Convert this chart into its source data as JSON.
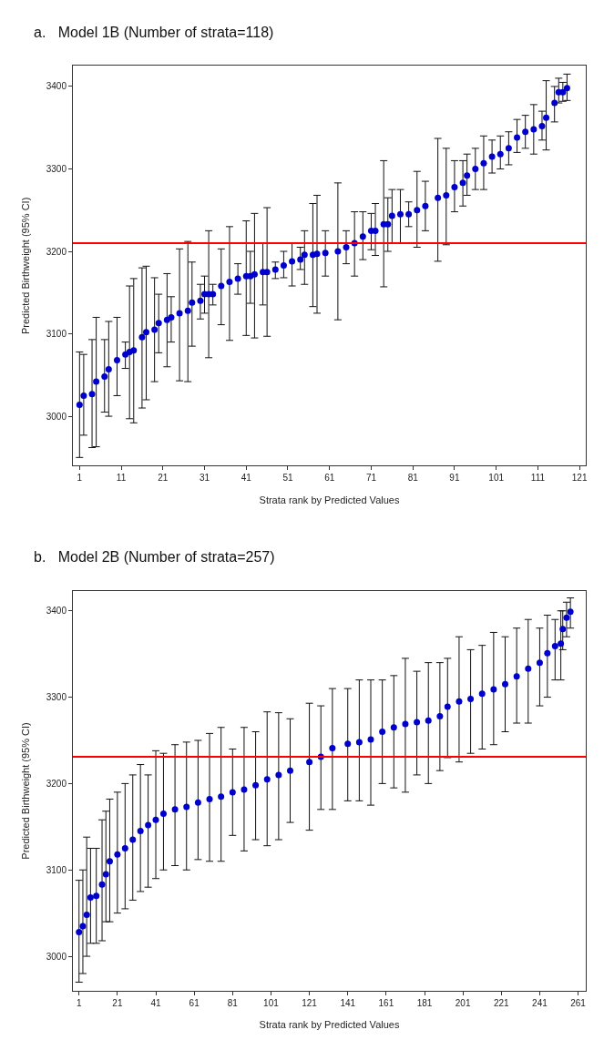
{
  "chart_data": [
    {
      "type": "scatter",
      "title": "a.   Model 1B (Number of strata=118)",
      "xlabel": "Strata rank by Predicted Values",
      "ylabel": "Predicted Birthweight (95% CI)",
      "marker": "circle",
      "xlim": [
        -0.6,
        122.5
      ],
      "xticks": [
        1,
        11,
        21,
        31,
        41,
        51,
        61,
        71,
        81,
        91,
        101,
        111,
        121
      ],
      "ylim": [
        2940,
        3425
      ],
      "yticks": [
        3000,
        3100,
        3200,
        3300,
        3400
      ],
      "ref_lines": [
        {
          "axis": "y",
          "value": 3210,
          "color": "#ff0000"
        }
      ],
      "series": [
        {
          "color": "#0000cc",
          "x": [
            1,
            2,
            4,
            5,
            7,
            8,
            10,
            12,
            13,
            14,
            16,
            17,
            19,
            20,
            22,
            23,
            25,
            27,
            28,
            30,
            31,
            32,
            33,
            35,
            37,
            39,
            41,
            42,
            43,
            45,
            46,
            48,
            50,
            52,
            54,
            55,
            57,
            58,
            60,
            63,
            65,
            67,
            69,
            71,
            72,
            74,
            75,
            76,
            78,
            80,
            82,
            84,
            87,
            89,
            91,
            93,
            94,
            96,
            98,
            100,
            102,
            104,
            106,
            108,
            110,
            112,
            113,
            115,
            116,
            117,
            118
          ],
          "values": [
            3014,
            3025,
            3027,
            3042,
            3048,
            3057,
            3068,
            3075,
            3078,
            3080,
            3096,
            3102,
            3105,
            3113,
            3117,
            3120,
            3125,
            3128,
            3138,
            3140,
            3148,
            3148,
            3148,
            3158,
            3163,
            3167,
            3170,
            3170,
            3172,
            3175,
            3175,
            3178,
            3183,
            3188,
            3190,
            3196,
            3196,
            3197,
            3198,
            3200,
            3205,
            3210,
            3218,
            3225,
            3225,
            3233,
            3233,
            3243,
            3245,
            3245,
            3250,
            3255,
            3265,
            3268,
            3278,
            3283,
            3292,
            3300,
            3307,
            3315,
            3318,
            3325,
            3338,
            3345,
            3348,
            3352,
            3362,
            3380,
            3393,
            3393,
            3398
          ],
          "errors": [
            [
              2950,
              3078
            ],
            [
              2977,
              3075
            ],
            [
              2962,
              3093
            ],
            [
              2963,
              3120
            ],
            [
              3005,
              3093
            ],
            [
              3000,
              3115
            ],
            [
              3025,
              3120
            ],
            [
              3058,
              3090
            ],
            [
              2997,
              3158
            ],
            [
              2992,
              3167
            ],
            [
              3010,
              3180
            ],
            [
              3020,
              3182
            ],
            [
              3042,
              3168
            ],
            [
              3077,
              3148
            ],
            [
              3060,
              3173
            ],
            [
              3090,
              3145
            ],
            [
              3043,
              3203
            ],
            [
              3042,
              3212
            ],
            [
              3085,
              3187
            ],
            [
              3118,
              3160
            ],
            [
              3125,
              3170
            ],
            [
              3071,
              3225
            ],
            [
              3135,
              3160
            ],
            [
              3111,
              3203
            ],
            [
              3092,
              3230
            ],
            [
              3148,
              3185
            ],
            [
              3098,
              3237
            ],
            [
              3137,
              3200
            ],
            [
              3095,
              3246
            ],
            [
              3135,
              3210
            ],
            [
              3097,
              3253
            ],
            [
              3167,
              3187
            ],
            [
              3168,
              3200
            ],
            [
              3158,
              3210
            ],
            [
              3178,
              3205
            ],
            [
              3160,
              3225
            ],
            [
              3133,
              3258
            ],
            [
              3125,
              3268
            ],
            [
              3170,
              3225
            ],
            [
              3117,
              3283
            ],
            [
              3185,
              3225
            ],
            [
              3170,
              3248
            ],
            [
              3190,
              3248
            ],
            [
              3202,
              3246
            ],
            [
              3195,
              3258
            ],
            [
              3157,
              3310
            ],
            [
              3200,
              3265
            ],
            [
              3210,
              3275
            ],
            [
              3210,
              3275
            ],
            [
              3230,
              3260
            ],
            [
              3205,
              3297
            ],
            [
              3225,
              3285
            ],
            [
              3188,
              3337
            ],
            [
              3208,
              3325
            ],
            [
              3248,
              3310
            ],
            [
              3255,
              3310
            ],
            [
              3268,
              3318
            ],
            [
              3275,
              3325
            ],
            [
              3275,
              3340
            ],
            [
              3295,
              3335
            ],
            [
              3300,
              3340
            ],
            [
              3305,
              3345
            ],
            [
              3320,
              3360
            ],
            [
              3325,
              3365
            ],
            [
              3318,
              3378
            ],
            [
              3335,
              3370
            ],
            [
              3323,
              3407
            ],
            [
              3357,
              3400
            ],
            [
              3380,
              3410
            ],
            [
              3382,
              3405
            ],
            [
              3383,
              3415
            ]
          ]
        }
      ]
    },
    {
      "type": "scatter",
      "title": "b.   Model 2B (Number of strata=257)",
      "xlabel": "Strata rank by Predicted Values",
      "ylabel": "Predicted Birthweight (95% CI)",
      "marker": "circle",
      "xlim": [
        -2.2,
        265
      ],
      "xticks": [
        1,
        21,
        41,
        61,
        81,
        101,
        121,
        141,
        161,
        181,
        201,
        221,
        241,
        261
      ],
      "ylim": [
        2960,
        3423
      ],
      "yticks": [
        3000,
        3100,
        3200,
        3300,
        3400
      ],
      "ref_lines": [
        {
          "axis": "y",
          "value": 3231,
          "color": "#ff0000"
        }
      ],
      "series": [
        {
          "color": "#0000cc",
          "x": [
            1,
            3,
            5,
            7,
            10,
            13,
            15,
            17,
            21,
            25,
            29,
            33,
            37,
            41,
            45,
            51,
            57,
            63,
            69,
            75,
            81,
            87,
            93,
            99,
            105,
            111,
            121,
            127,
            133,
            141,
            147,
            153,
            159,
            165,
            171,
            177,
            183,
            189,
            193,
            199,
            205,
            211,
            217,
            223,
            229,
            235,
            241,
            245,
            249,
            252,
            253,
            255,
            257
          ],
          "values": [
            3028,
            3035,
            3048,
            3068,
            3070,
            3083,
            3095,
            3110,
            3118,
            3125,
            3135,
            3145,
            3152,
            3158,
            3165,
            3170,
            3173,
            3178,
            3182,
            3185,
            3190,
            3193,
            3198,
            3205,
            3210,
            3215,
            3225,
            3231,
            3241,
            3246,
            3248,
            3251,
            3260,
            3265,
            3269,
            3271,
            3273,
            3278,
            3289,
            3295,
            3298,
            3304,
            3309,
            3315,
            3324,
            3333,
            3340,
            3351,
            3359,
            3362,
            3379,
            3392,
            3399
          ],
          "errors": [
            [
              2970,
              3088
            ],
            [
              2980,
              3100
            ],
            [
              3000,
              3138
            ],
            [
              3015,
              3125
            ],
            [
              3015,
              3125
            ],
            [
              3018,
              3158
            ],
            [
              3040,
              3168
            ],
            [
              3040,
              3182
            ],
            [
              3050,
              3190
            ],
            [
              3055,
              3200
            ],
            [
              3065,
              3210
            ],
            [
              3075,
              3222
            ],
            [
              3080,
              3210
            ],
            [
              3090,
              3238
            ],
            [
              3100,
              3235
            ],
            [
              3105,
              3245
            ],
            [
              3100,
              3248
            ],
            [
              3112,
              3250
            ],
            [
              3110,
              3258
            ],
            [
              3110,
              3265
            ],
            [
              3140,
              3240
            ],
            [
              3122,
              3265
            ],
            [
              3135,
              3260
            ],
            [
              3128,
              3283
            ],
            [
              3135,
              3282
            ],
            [
              3155,
              3275
            ],
            [
              3146,
              3293
            ],
            [
              3170,
              3290
            ],
            [
              3170,
              3310
            ],
            [
              3180,
              3310
            ],
            [
              3180,
              3320
            ],
            [
              3175,
              3320
            ],
            [
              3200,
              3320
            ],
            [
              3195,
              3325
            ],
            [
              3190,
              3345
            ],
            [
              3210,
              3330
            ],
            [
              3200,
              3340
            ],
            [
              3215,
              3340
            ],
            [
              3230,
              3345
            ],
            [
              3225,
              3370
            ],
            [
              3235,
              3355
            ],
            [
              3240,
              3360
            ],
            [
              3245,
              3375
            ],
            [
              3260,
              3370
            ],
            [
              3270,
              3380
            ],
            [
              3270,
              3390
            ],
            [
              3290,
              3380
            ],
            [
              3300,
              3395
            ],
            [
              3320,
              3390
            ],
            [
              3320,
              3400
            ],
            [
              3355,
              3400
            ],
            [
              3370,
              3410
            ],
            [
              3380,
              3415
            ]
          ]
        }
      ]
    }
  ]
}
